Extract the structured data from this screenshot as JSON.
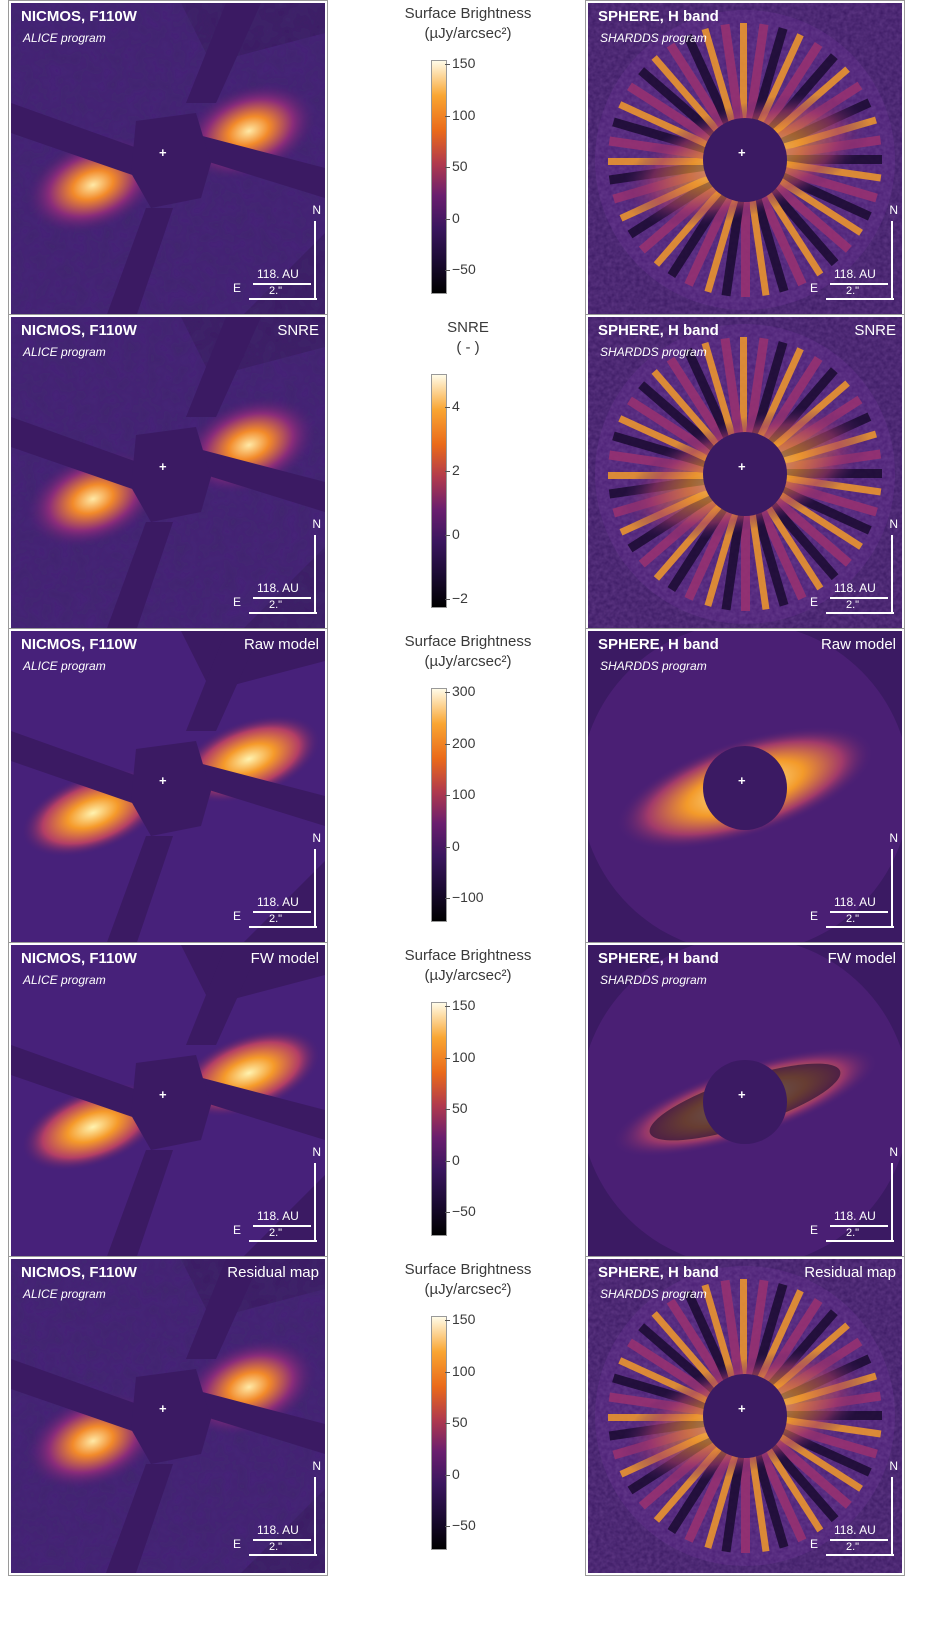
{
  "left_panels": [
    {
      "title": "NICMOS, F110W",
      "subtitle": "ALICE program",
      "label": "",
      "north": "N",
      "east": "E",
      "au": "118. AU",
      "arcsec": "2.\""
    },
    {
      "title": "NICMOS, F110W",
      "subtitle": "ALICE program",
      "label": "SNRE",
      "north": "N",
      "east": "E",
      "au": "118. AU",
      "arcsec": "2.\""
    },
    {
      "title": "NICMOS, F110W",
      "subtitle": "ALICE program",
      "label": "Raw model",
      "north": "N",
      "east": "E",
      "au": "118. AU",
      "arcsec": "2.\""
    },
    {
      "title": "NICMOS, F110W",
      "subtitle": "ALICE program",
      "label": "FW model",
      "north": "N",
      "east": "E",
      "au": "118. AU",
      "arcsec": "2.\""
    },
    {
      "title": "NICMOS, F110W",
      "subtitle": "ALICE program",
      "label": "Residual map",
      "north": "N",
      "east": "E",
      "au": "118. AU",
      "arcsec": "2.\""
    }
  ],
  "right_panels": [
    {
      "title": "SPHERE, H band",
      "subtitle": "SHARDDS program",
      "label": "",
      "north": "N",
      "east": "E",
      "au": "118. AU",
      "arcsec": "2.\""
    },
    {
      "title": "SPHERE, H band",
      "subtitle": "SHARDDS program",
      "label": "SNRE",
      "north": "N",
      "east": "E",
      "au": "118. AU",
      "arcsec": "2.\""
    },
    {
      "title": "SPHERE, H band",
      "subtitle": "SHARDDS program",
      "label": "Raw model",
      "north": "N",
      "east": "E",
      "au": "118. AU",
      "arcsec": "2.\""
    },
    {
      "title": "SPHERE, H band",
      "subtitle": "SHARDDS program",
      "label": "FW model",
      "north": "N",
      "east": "E",
      "au": "118. AU",
      "arcsec": "2.\""
    },
    {
      "title": "SPHERE, H band",
      "subtitle": "SHARDDS program",
      "label": "Residual map",
      "north": "N",
      "east": "E",
      "au": "118. AU",
      "arcsec": "2.\""
    }
  ],
  "colorbars": [
    {
      "title_line1": "Surface Brightness",
      "title_line2": "(µJy/arcsec²)",
      "ticks": [
        "150",
        "100",
        "50",
        "0",
        "−50"
      ]
    },
    {
      "title_line1": "SNRE",
      "title_line2": "( - )",
      "ticks": [
        "4",
        "2",
        "0",
        "−2"
      ]
    },
    {
      "title_line1": "Surface Brightness",
      "title_line2": "(µJy/arcsec²)",
      "ticks": [
        "300",
        "200",
        "100",
        "0",
        "−100"
      ]
    },
    {
      "title_line1": "Surface Brightness",
      "title_line2": "(µJy/arcsec²)",
      "ticks": [
        "150",
        "100",
        "50",
        "0",
        "−50"
      ]
    },
    {
      "title_line1": "Surface Brightness",
      "title_line2": "(µJy/arcsec²)",
      "ticks": [
        "150",
        "100",
        "50",
        "0",
        "−50"
      ]
    }
  ],
  "star_marker": "+",
  "colors": {
    "background": "#3b1a63",
    "disk_hot": "#ffd27a",
    "disk_warm": "#e8631a",
    "frame": "#9a9a9a"
  }
}
